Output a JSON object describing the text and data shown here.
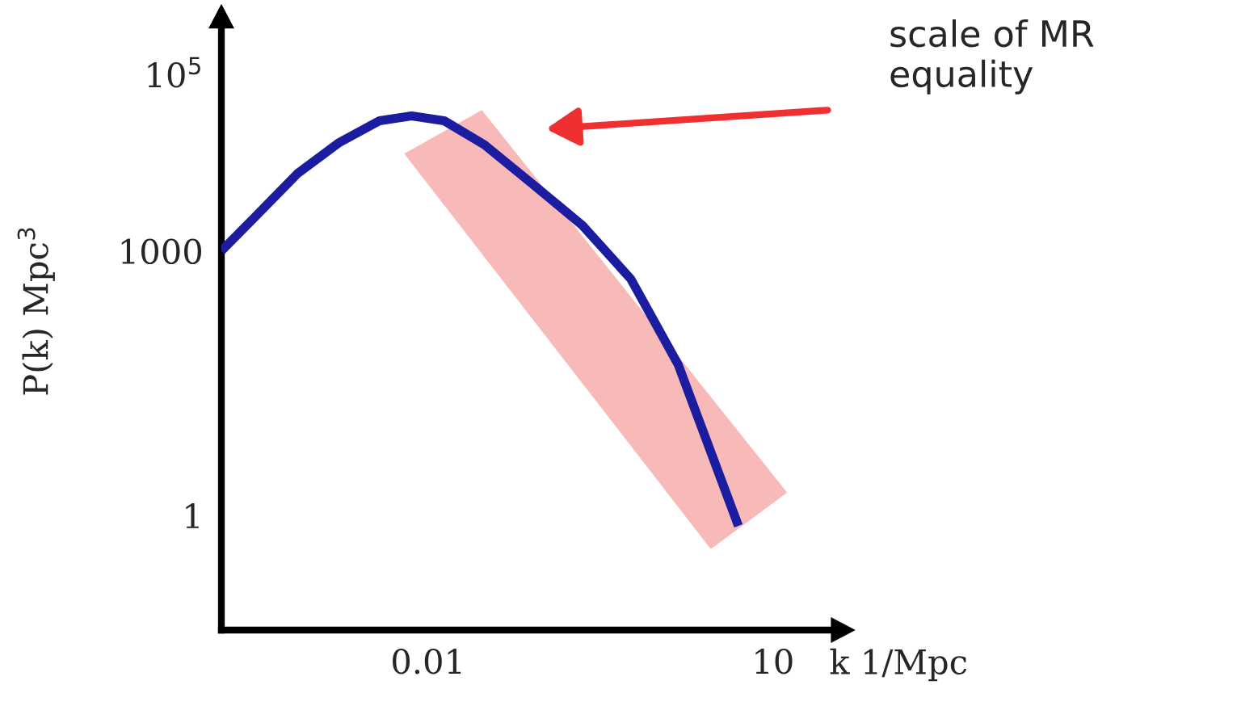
{
  "chart_data": {
    "type": "line",
    "xlabel": "k 1/Mpc",
    "ylabel": "P(k) Mpc$^{3}$",
    "log": "xy",
    "grid": false,
    "legend": false,
    "marker": "none",
    "line_style": "solid",
    "xlim": [
      0.00016,
      36
    ],
    "ylim": [
      0.05,
      460000
    ],
    "xticks": [
      0.01,
      10
    ],
    "yticks": [
      1,
      1000,
      {
        "value": 100000,
        "label": "10$^{5}$"
      }
    ],
    "series": [
      {
        "color": "#1c1ca0",
        "x": [
          0.00016,
          0.00033,
          0.00074,
          0.0017,
          0.0038,
          0.0072,
          0.0138,
          0.031,
          0.083,
          0.22,
          0.58,
          1.5,
          5.0
        ],
        "values": [
          1000,
          2600,
          7600,
          17000,
          30000,
          34000,
          30000,
          16000,
          5600,
          1950,
          480,
          51,
          0.76
        ]
      }
    ],
    "annotations": [
      "scale of MR equality"
    ]
  }
}
